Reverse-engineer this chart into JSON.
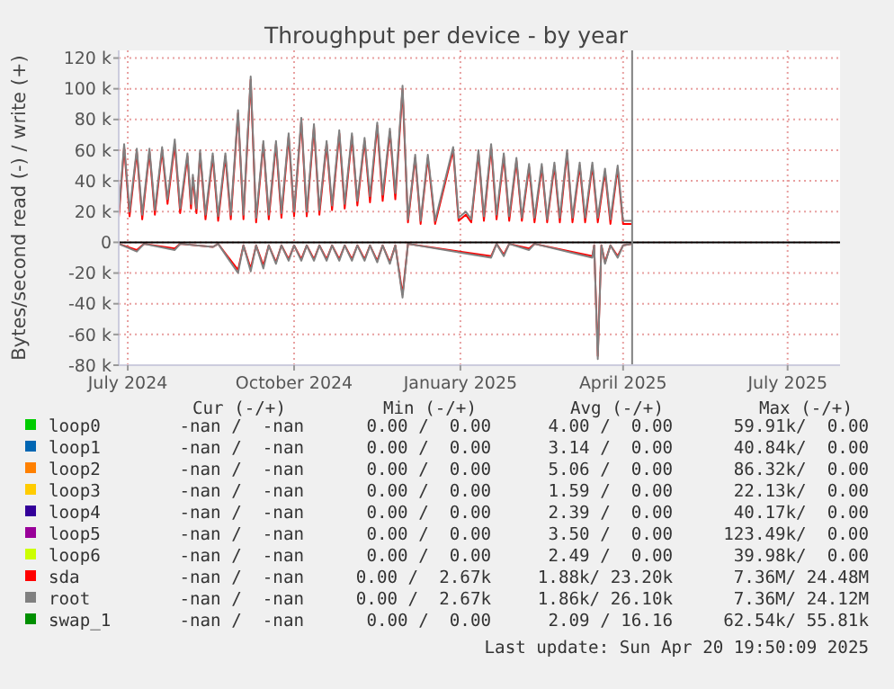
{
  "chart_data": {
    "type": "line",
    "title": "Throughput per device - by year",
    "ylabel": "Bytes/second read (-) / write (+)",
    "x": [
      "2024-07-10",
      "2024-07-13",
      "2024-07-16",
      "2024-07-20",
      "2024-07-23",
      "2024-07-27",
      "2024-07-30",
      "2024-08-03",
      "2024-08-06",
      "2024-08-10",
      "2024-08-13",
      "2024-08-17",
      "2024-08-19",
      "2024-08-20",
      "2024-08-22",
      "2024-08-24",
      "2024-08-27",
      "2024-08-31",
      "2024-09-03",
      "2024-09-07",
      "2024-09-10",
      "2024-09-14",
      "2024-09-17",
      "2024-09-21",
      "2024-09-24",
      "2024-09-28",
      "2024-10-01",
      "2024-10-05",
      "2024-10-08",
      "2024-10-12",
      "2024-10-15",
      "2024-10-19",
      "2024-10-22",
      "2024-10-26",
      "2024-10-29",
      "2024-11-02",
      "2024-11-05",
      "2024-11-09",
      "2024-11-12",
      "2024-11-16",
      "2024-11-19",
      "2024-11-23",
      "2024-11-26",
      "2024-11-30",
      "2024-12-03",
      "2024-12-07",
      "2024-12-10",
      "2024-12-14",
      "2024-12-17",
      "2024-12-21",
      "2024-12-24",
      "2024-12-28",
      "2025-01-01",
      "2025-01-11",
      "2025-01-14",
      "2025-01-18",
      "2025-01-21",
      "2025-01-25",
      "2025-01-28",
      "2025-02-01",
      "2025-02-04",
      "2025-02-08",
      "2025-02-11",
      "2025-02-15",
      "2025-02-18",
      "2025-02-22",
      "2025-02-25",
      "2025-03-01",
      "2025-03-04",
      "2025-03-08",
      "2025-03-11",
      "2025-03-15",
      "2025-03-18",
      "2025-03-22",
      "2025-03-25",
      "2025-03-29",
      "2025-04-01",
      "2025-04-05",
      "2025-04-08",
      "2025-04-12",
      "2025-04-15",
      "2025-04-20"
    ],
    "series": [
      {
        "name": "loop0",
        "color": "#00cc00",
        "values": [
          null,
          null,
          null,
          null,
          null,
          null,
          null,
          null,
          null,
          null,
          null,
          null,
          null,
          null,
          null,
          null,
          null,
          null,
          null,
          null,
          null,
          null,
          null,
          null,
          null,
          null,
          null,
          null,
          null,
          null,
          null,
          null,
          null,
          null,
          null,
          null,
          null,
          null,
          null,
          null,
          null,
          null,
          null,
          null,
          null,
          null,
          null,
          null,
          null,
          null,
          null,
          null,
          null,
          null,
          null,
          null,
          null,
          null,
          null,
          null,
          null,
          null,
          null,
          null,
          null,
          null,
          null,
          null,
          null,
          null,
          null,
          null,
          null,
          null,
          null,
          null,
          null,
          null,
          null,
          null,
          null,
          null
        ]
      },
      {
        "name": "loop1",
        "color": "#0066b3",
        "values": [
          null,
          null,
          null,
          null,
          null,
          null,
          null,
          null,
          null,
          null,
          null,
          null,
          null,
          null,
          null,
          null,
          null,
          null,
          null,
          null,
          null,
          null,
          null,
          null,
          null,
          null,
          null,
          null,
          null,
          null,
          null,
          null,
          null,
          null,
          null,
          null,
          null,
          null,
          null,
          null,
          null,
          null,
          null,
          null,
          null,
          null,
          null,
          null,
          null,
          null,
          null,
          null,
          null,
          null,
          null,
          null,
          null,
          null,
          null,
          null,
          null,
          null,
          null,
          null,
          null,
          null,
          null,
          null,
          null,
          null,
          null,
          null,
          null,
          null,
          null,
          null,
          null,
          null,
          null,
          null,
          null,
          null
        ]
      },
      {
        "name": "loop2",
        "color": "#ff8000",
        "values": [
          null,
          null,
          null,
          null,
          null,
          null,
          null,
          null,
          null,
          null,
          null,
          null,
          null,
          null,
          null,
          null,
          null,
          null,
          null,
          null,
          null,
          null,
          null,
          null,
          null,
          null,
          null,
          null,
          null,
          null,
          null,
          null,
          null,
          null,
          null,
          null,
          null,
          null,
          null,
          null,
          null,
          null,
          null,
          null,
          null,
          null,
          null,
          null,
          null,
          null,
          null,
          null,
          null,
          null,
          null,
          null,
          null,
          null,
          null,
          null,
          null,
          null,
          null,
          null,
          null,
          null,
          null,
          null,
          null,
          null,
          null,
          null,
          null,
          null,
          null,
          null,
          null,
          null,
          null,
          null,
          null,
          null
        ]
      },
      {
        "name": "loop3",
        "color": "#ffcc00",
        "values": [
          null,
          null,
          null,
          null,
          null,
          null,
          null,
          null,
          null,
          null,
          null,
          null,
          null,
          null,
          null,
          null,
          null,
          null,
          null,
          null,
          null,
          null,
          null,
          null,
          null,
          null,
          null,
          null,
          null,
          null,
          null,
          null,
          null,
          null,
          null,
          null,
          null,
          null,
          null,
          null,
          null,
          null,
          null,
          null,
          null,
          null,
          null,
          null,
          null,
          null,
          null,
          null,
          null,
          null,
          null,
          null,
          null,
          null,
          null,
          null,
          null,
          null,
          null,
          null,
          null,
          null,
          null,
          null,
          null,
          null,
          null,
          null,
          null,
          null,
          null,
          null,
          null,
          null,
          null,
          null,
          null,
          null
        ]
      },
      {
        "name": "loop4",
        "color": "#330099",
        "values": [
          null,
          null,
          null,
          null,
          null,
          null,
          null,
          null,
          null,
          null,
          null,
          null,
          null,
          null,
          null,
          null,
          null,
          null,
          null,
          null,
          null,
          null,
          null,
          null,
          null,
          null,
          null,
          null,
          null,
          null,
          null,
          null,
          null,
          null,
          null,
          null,
          null,
          null,
          null,
          null,
          null,
          null,
          null,
          null,
          null,
          null,
          null,
          null,
          null,
          null,
          null,
          null,
          null,
          null,
          null,
          null,
          null,
          null,
          null,
          null,
          null,
          null,
          null,
          null,
          null,
          null,
          null,
          null,
          null,
          null,
          null,
          null,
          null,
          null,
          null,
          null,
          null,
          null,
          null,
          null,
          null,
          null
        ]
      },
      {
        "name": "loop5",
        "color": "#990099",
        "values": [
          null,
          null,
          null,
          null,
          null,
          null,
          null,
          null,
          null,
          null,
          null,
          null,
          null,
          null,
          null,
          null,
          null,
          null,
          null,
          null,
          null,
          null,
          null,
          null,
          null,
          null,
          null,
          null,
          null,
          null,
          null,
          null,
          null,
          null,
          null,
          null,
          null,
          null,
          null,
          null,
          null,
          null,
          null,
          null,
          null,
          null,
          null,
          null,
          null,
          null,
          null,
          null,
          null,
          null,
          null,
          null,
          null,
          null,
          null,
          null,
          null,
          null,
          null,
          null,
          null,
          null,
          null,
          null,
          null,
          null,
          null,
          null,
          null,
          null,
          null,
          null,
          null,
          null,
          null,
          null,
          null,
          null
        ]
      },
      {
        "name": "loop6",
        "color": "#ccff00",
        "values": [
          null,
          null,
          null,
          null,
          null,
          null,
          null,
          null,
          null,
          null,
          null,
          null,
          null,
          null,
          null,
          null,
          null,
          null,
          null,
          null,
          null,
          null,
          null,
          null,
          null,
          null,
          null,
          null,
          null,
          null,
          null,
          null,
          null,
          null,
          null,
          null,
          null,
          null,
          null,
          null,
          null,
          null,
          null,
          null,
          null,
          null,
          null,
          null,
          null,
          null,
          null,
          null,
          null,
          null,
          null,
          null,
          null,
          null,
          null,
          null,
          null,
          null,
          null,
          null,
          null,
          null,
          null,
          null,
          null,
          null,
          null,
          null,
          null,
          null,
          null,
          null,
          null,
          null,
          null,
          null,
          null,
          null
        ]
      },
      {
        "name": "sda",
        "color": "#ff0000",
        "values": [
          16000,
          62000,
          17000,
          59000,
          15000,
          59000,
          18000,
          60000,
          25000,
          64000,
          19000,
          56000,
          22000,
          42000,
          19000,
          58000,
          15000,
          56000,
          14000,
          56000,
          15000,
          84000,
          15000,
          106000,
          13000,
          64000,
          15000,
          64000,
          16000,
          69000,
          17000,
          79000,
          17000,
          75000,
          18000,
          64000,
          21000,
          71000,
          22000,
          69000,
          24000,
          66000,
          26000,
          76000,
          27000,
          72000,
          28000,
          100000,
          13000,
          55000,
          12000,
          55000,
          12000,
          60000,
          14000,
          18000,
          13000,
          58000,
          14000,
          62000,
          15000,
          56000,
          14000,
          53000,
          14000,
          49000,
          13000,
          49000,
          13000,
          50000,
          13000,
          58000,
          13000,
          50000,
          13000,
          50000,
          13000,
          46000,
          12000,
          48000,
          12000,
          12000
        ]
      },
      {
        "name": "root",
        "color": "#808080",
        "values": [
          19000,
          64000,
          20000,
          61000,
          18000,
          61000,
          21000,
          62000,
          28000,
          67000,
          22000,
          58000,
          25000,
          44000,
          22000,
          60000,
          18000,
          58000,
          17000,
          58000,
          18000,
          86000,
          18000,
          108000,
          16000,
          66000,
          18000,
          66000,
          19000,
          71000,
          20000,
          81000,
          20000,
          77000,
          21000,
          66000,
          24000,
          73000,
          25000,
          71000,
          27000,
          68000,
          30000,
          78000,
          31000,
          74000,
          32000,
          102000,
          15000,
          57000,
          14000,
          57000,
          14000,
          62000,
          16000,
          20000,
          15000,
          60000,
          17000,
          64000,
          18000,
          58000,
          17000,
          55000,
          16000,
          51000,
          16000,
          51000,
          15000,
          52000,
          16000,
          60000,
          16000,
          52000,
          16000,
          52000,
          16000,
          48000,
          15000,
          50000,
          14000,
          14000
        ]
      },
      {
        "name": "swap_1",
        "color": "#008f00",
        "values": [
          null,
          null,
          null,
          null,
          null,
          null,
          null,
          null,
          null,
          null,
          null,
          null,
          null,
          null,
          null,
          null,
          null,
          null,
          null,
          null,
          null,
          null,
          null,
          null,
          null,
          null,
          null,
          null,
          null,
          null,
          null,
          null,
          null,
          null,
          null,
          null,
          null,
          null,
          null,
          null,
          null,
          null,
          null,
          null,
          null,
          null,
          null,
          null,
          null,
          null,
          null,
          null,
          null,
          null,
          null,
          null,
          null,
          null,
          null,
          null,
          null,
          null,
          null,
          null,
          null,
          null,
          null,
          null,
          null,
          null,
          null,
          null,
          null,
          null,
          null,
          null,
          null,
          null,
          null,
          null,
          null,
          null
        ]
      },
      {
        "color": "#ff0000",
        "x": [
          "2024-07-10",
          "2024-07-20",
          "2024-07-24",
          "2024-08-10",
          "2024-08-13",
          "2024-08-31",
          "2024-09-03",
          "2024-09-14",
          "2024-09-17",
          "2024-09-21",
          "2024-09-24",
          "2024-09-28",
          "2024-10-01",
          "2024-10-05",
          "2024-10-08",
          "2024-10-12",
          "2024-10-15",
          "2024-10-19",
          "2024-10-22",
          "2024-10-26",
          "2024-10-29",
          "2024-11-02",
          "2024-11-05",
          "2024-11-09",
          "2024-11-12",
          "2024-11-16",
          "2024-11-19",
          "2024-11-23",
          "2024-11-26",
          "2024-11-30",
          "2024-12-03",
          "2024-12-07",
          "2024-12-10",
          "2024-12-14",
          "2024-12-17",
          "2025-02-01",
          "2025-02-04",
          "2025-02-08",
          "2025-02-11",
          "2025-02-22",
          "2025-02-25",
          "2025-03-29",
          "2025-03-30",
          "2025-04-01",
          "2025-04-03",
          "2025-04-05",
          "2025-04-08",
          "2025-04-12",
          "2025-04-15",
          "2025-04-20"
        ],
        "values": [
          -1000,
          -5000,
          -1000,
          -4000,
          -1000,
          -3000,
          -1000,
          -18000,
          -2000,
          -17000,
          -2000,
          -15000,
          -2000,
          -13000,
          -2000,
          -11000,
          -2000,
          -11000,
          -2000,
          -11000,
          -2000,
          -11000,
          -2000,
          -11000,
          -2000,
          -11000,
          -2000,
          -11000,
          -2000,
          -12000,
          -2000,
          -13000,
          -2000,
          -34000,
          -1000,
          -9000,
          -1000,
          -8000,
          -1000,
          -4000,
          -1000,
          -9000,
          -2000,
          -74000,
          -2000,
          -13000,
          -2000,
          -9000,
          -2000,
          -1000
        ]
      },
      {
        "color": "#808080",
        "x": [
          "2024-07-10",
          "2024-07-20",
          "2024-07-24",
          "2024-08-10",
          "2024-08-13",
          "2024-08-31",
          "2024-09-03",
          "2024-09-14",
          "2024-09-17",
          "2024-09-21",
          "2024-09-24",
          "2024-09-28",
          "2024-10-01",
          "2024-10-05",
          "2024-10-08",
          "2024-10-12",
          "2024-10-15",
          "2024-10-19",
          "2024-10-22",
          "2024-10-26",
          "2024-10-29",
          "2024-11-02",
          "2024-11-05",
          "2024-11-09",
          "2024-11-12",
          "2024-11-16",
          "2024-11-19",
          "2024-11-23",
          "2024-11-26",
          "2024-11-30",
          "2024-12-03",
          "2024-12-07",
          "2024-12-10",
          "2024-12-14",
          "2024-12-17",
          "2025-02-01",
          "2025-02-04",
          "2025-02-08",
          "2025-02-11",
          "2025-02-22",
          "2025-02-25",
          "2025-03-29",
          "2025-03-30",
          "2025-04-01",
          "2025-04-03",
          "2025-04-05",
          "2025-04-08",
          "2025-04-12",
          "2025-04-15",
          "2025-04-20"
        ],
        "values": [
          -1000,
          -6000,
          -1000,
          -5000,
          -1000,
          -3000,
          -1000,
          -20000,
          -2000,
          -19000,
          -2000,
          -17000,
          -2000,
          -14000,
          -2000,
          -12000,
          -2000,
          -12000,
          -2000,
          -12000,
          -2000,
          -12000,
          -2000,
          -12000,
          -2000,
          -12000,
          -2000,
          -12000,
          -2000,
          -13000,
          -2000,
          -14000,
          -2000,
          -36000,
          -1000,
          -10000,
          -1000,
          -9000,
          -1000,
          -5000,
          -1000,
          -10000,
          -2000,
          -76000,
          -2000,
          -14000,
          -2000,
          -10000,
          -2000,
          -1000
        ]
      }
    ],
    "xlim": [
      "2024-07-10",
      "2025-08-13"
    ],
    "xticks": [
      {
        "value": "2024-07-15",
        "label": "July 2024"
      },
      {
        "value": "2024-10-15",
        "label": "October 2024"
      },
      {
        "value": "2025-01-15",
        "label": "January 2025"
      },
      {
        "value": "2025-04-15",
        "label": "April 2025"
      },
      {
        "value": "2025-07-15",
        "label": "July 2025"
      }
    ],
    "ylim": [
      -80000,
      125000
    ],
    "yticks": [
      {
        "value": -80000,
        "label": "-80 k"
      },
      {
        "value": -60000,
        "label": "-60 k"
      },
      {
        "value": -40000,
        "label": "-40 k"
      },
      {
        "value": -20000,
        "label": "-20 k"
      },
      {
        "value": 0,
        "label": "0"
      },
      {
        "value": 20000,
        "label": "20 k"
      },
      {
        "value": 40000,
        "label": "40 k"
      },
      {
        "value": 60000,
        "label": "60 k"
      },
      {
        "value": 80000,
        "label": "80 k"
      },
      {
        "value": 100000,
        "label": "100 k"
      },
      {
        "value": 120000,
        "label": "120 k"
      }
    ],
    "ref_lines": [
      {
        "axis": "y",
        "value": 0,
        "color": "#000000"
      },
      {
        "axis": "x",
        "value": "2025-04-20",
        "color": "#808080"
      }
    ],
    "grid": true,
    "legend": "bottom",
    "marker": "none",
    "line_style": "solid",
    "annotations": [
      "Cur (-/+)",
      "Min (-/+)",
      "Avg (-/+)",
      "Max (-/+)",
      "-nan /  -nan",
      "0.00 /  0.00",
      "4.00 /  0.00",
      "59.91k/  0.00",
      "-nan /  -nan",
      "0.00 /  0.00",
      "3.14 /  0.00",
      "40.84k/  0.00",
      "-nan /  -nan",
      "0.00 /  0.00",
      "5.06 /  0.00",
      "86.32k/  0.00",
      "-nan /  -nan",
      "0.00 /  0.00",
      "1.59 /  0.00",
      "22.13k/  0.00",
      "-nan /  -nan",
      "0.00 /  0.00",
      "2.39 /  0.00",
      "40.17k/  0.00",
      "-nan /  -nan",
      "0.00 /  0.00",
      "3.50 /  0.00",
      "123.49k/  0.00",
      "-nan /  -nan",
      "0.00 /  0.00",
      "2.49 /  0.00",
      "39.98k/  0.00",
      "-nan /  -nan",
      "0.00 /  2.67k",
      "1.88k/ 23.20k",
      "7.36M/ 24.48M",
      "-nan /  -nan",
      "0.00 /  2.67k",
      "1.86k/ 26.10k",
      "7.36M/ 24.12M",
      "-nan /  -nan",
      "0.00 /  0.00",
      "2.09 / 16.16",
      "62.54k/ 55.81k",
      "Last update: Sun Apr 20 19:50:09 2025"
    ]
  }
}
